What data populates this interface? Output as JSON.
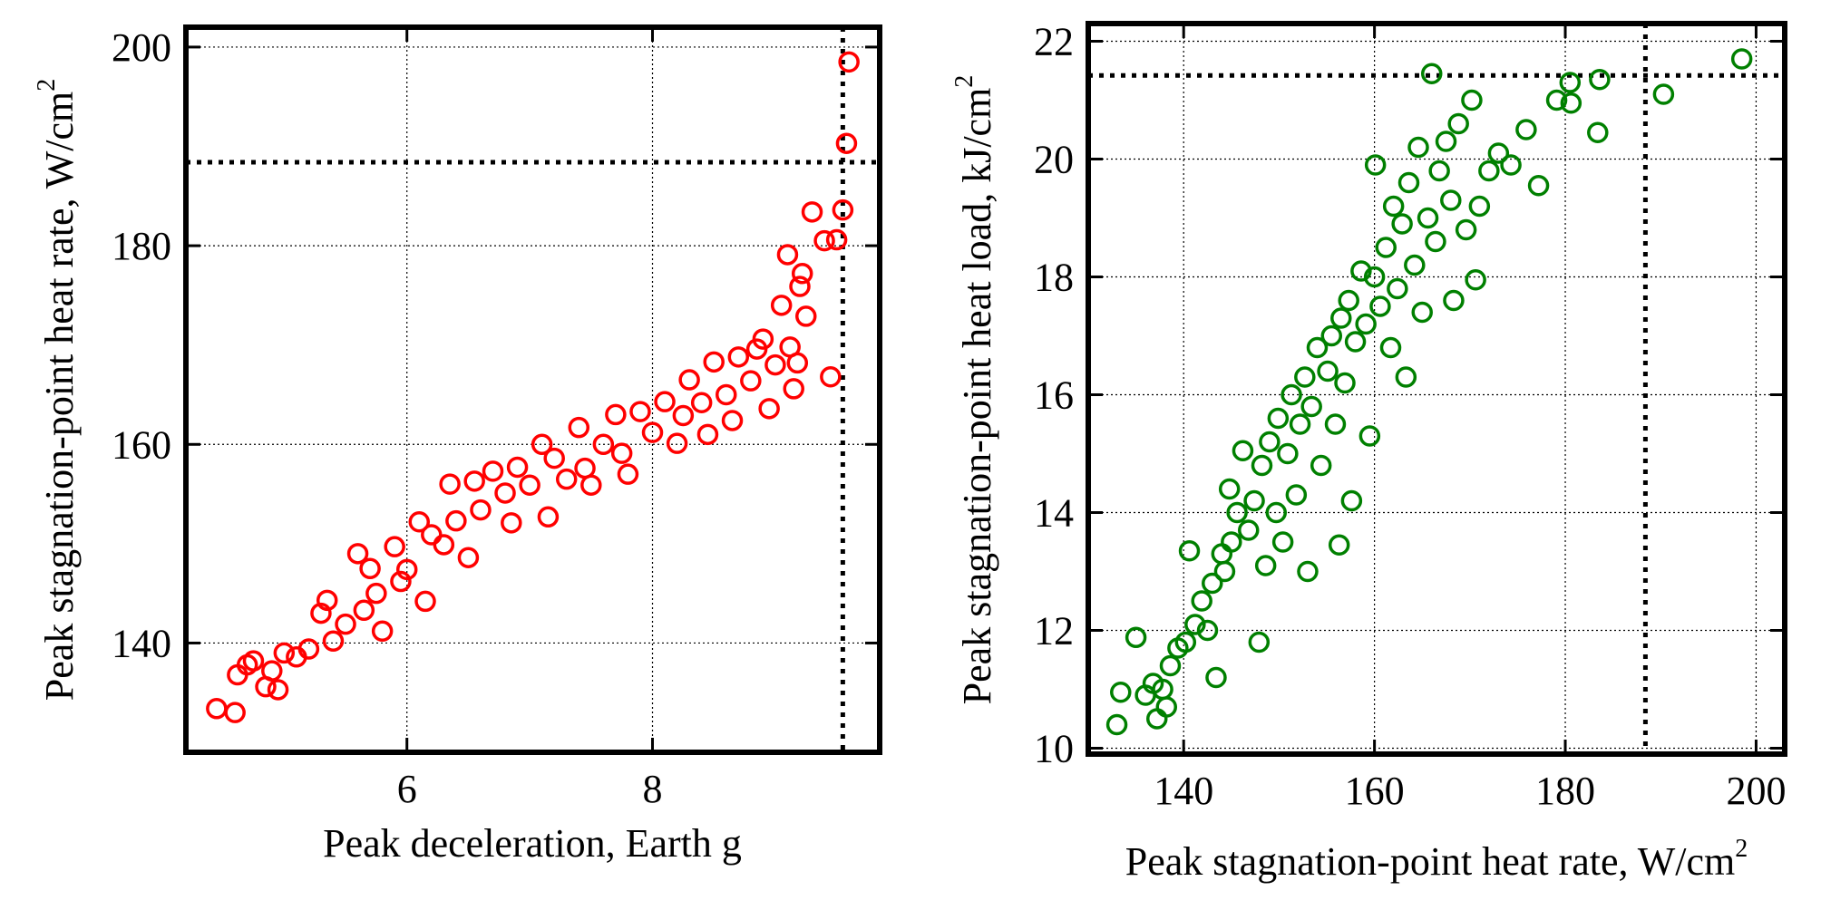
{
  "chart_data": [
    {
      "type": "scatter",
      "xlabel": "Peak deceleration, Earth g",
      "ylabel": "Peak stagnation-point heat rate,  W/cm",
      "ylabel_sup": "2",
      "xlim": [
        4.2,
        9.85
      ],
      "ylim": [
        129,
        202
      ],
      "xticks": [
        6,
        8
      ],
      "yticks": [
        140,
        160,
        180,
        200
      ],
      "grid": true,
      "marker": "open-circle",
      "color": "#ff0000",
      "reference_lines": {
        "x": 9.55,
        "y": 188.4,
        "style": "dotted"
      },
      "points": [
        [
          4.45,
          133.4
        ],
        [
          4.6,
          133.0
        ],
        [
          4.62,
          136.8
        ],
        [
          4.7,
          137.8
        ],
        [
          4.75,
          138.2
        ],
        [
          4.85,
          135.6
        ],
        [
          4.9,
          137.2
        ],
        [
          4.95,
          135.3
        ],
        [
          5.0,
          139.0
        ],
        [
          5.1,
          138.6
        ],
        [
          5.2,
          139.4
        ],
        [
          5.3,
          143.0
        ],
        [
          5.35,
          144.3
        ],
        [
          5.4,
          140.2
        ],
        [
          5.5,
          141.9
        ],
        [
          5.6,
          149.0
        ],
        [
          5.65,
          143.3
        ],
        [
          5.7,
          147.5
        ],
        [
          5.75,
          145.0
        ],
        [
          5.8,
          141.2
        ],
        [
          5.9,
          149.7
        ],
        [
          5.95,
          146.2
        ],
        [
          6.0,
          147.4
        ],
        [
          6.1,
          152.2
        ],
        [
          6.15,
          144.2
        ],
        [
          6.2,
          150.9
        ],
        [
          6.3,
          149.9
        ],
        [
          6.35,
          156.0
        ],
        [
          6.4,
          152.3
        ],
        [
          6.5,
          148.6
        ],
        [
          6.55,
          156.3
        ],
        [
          6.6,
          153.4
        ],
        [
          6.7,
          157.3
        ],
        [
          6.8,
          155.1
        ],
        [
          6.85,
          152.1
        ],
        [
          6.9,
          157.7
        ],
        [
          7.0,
          155.9
        ],
        [
          7.1,
          160.0
        ],
        [
          7.15,
          152.7
        ],
        [
          7.2,
          158.6
        ],
        [
          7.3,
          156.5
        ],
        [
          7.4,
          161.7
        ],
        [
          7.45,
          157.6
        ],
        [
          7.5,
          155.9
        ],
        [
          7.6,
          160.0
        ],
        [
          7.7,
          163.0
        ],
        [
          7.75,
          159.1
        ],
        [
          7.8,
          157.0
        ],
        [
          7.9,
          163.3
        ],
        [
          8.0,
          161.2
        ],
        [
          8.1,
          164.3
        ],
        [
          8.2,
          160.1
        ],
        [
          8.25,
          162.9
        ],
        [
          8.3,
          166.5
        ],
        [
          8.4,
          164.2
        ],
        [
          8.45,
          161.0
        ],
        [
          8.5,
          168.3
        ],
        [
          8.6,
          165.0
        ],
        [
          8.65,
          162.4
        ],
        [
          8.7,
          168.8
        ],
        [
          8.8,
          166.4
        ],
        [
          8.85,
          169.6
        ],
        [
          8.9,
          170.6
        ],
        [
          8.95,
          163.6
        ],
        [
          9.0,
          168.0
        ],
        [
          9.05,
          174.0
        ],
        [
          9.1,
          179.1
        ],
        [
          9.12,
          169.8
        ],
        [
          9.15,
          165.6
        ],
        [
          9.18,
          168.2
        ],
        [
          9.2,
          175.9
        ],
        [
          9.22,
          177.2
        ],
        [
          9.25,
          172.9
        ],
        [
          9.3,
          183.4
        ],
        [
          9.4,
          180.5
        ],
        [
          9.45,
          166.8
        ],
        [
          9.5,
          180.6
        ],
        [
          9.55,
          183.6
        ],
        [
          9.58,
          190.3
        ],
        [
          9.6,
          198.5
        ]
      ]
    },
    {
      "type": "scatter",
      "xlabel": "Peak stagnation-point heat rate, W/cm",
      "xlabel_sup": "2",
      "ylabel": "Peak stagnation-point heat load, kJ/cm",
      "ylabel_sup": "2",
      "xlim": [
        130,
        203
      ],
      "ylim": [
        9.9,
        22.3
      ],
      "xticks": [
        140,
        160,
        180,
        200
      ],
      "yticks": [
        10,
        12,
        14,
        16,
        18,
        20,
        22
      ],
      "grid": true,
      "marker": "open-circle",
      "color": "#008000",
      "reference_lines": {
        "x": 188.4,
        "y": 21.42,
        "style": "dotted"
      },
      "points": [
        [
          133.4,
          10.95
        ],
        [
          133.0,
          10.4
        ],
        [
          135.0,
          11.88
        ],
        [
          136.0,
          10.9
        ],
        [
          136.8,
          11.1
        ],
        [
          137.2,
          10.5
        ],
        [
          137.8,
          11.0
        ],
        [
          138.2,
          10.7
        ],
        [
          138.6,
          11.4
        ],
        [
          139.4,
          11.7
        ],
        [
          140.2,
          11.8
        ],
        [
          140.6,
          13.35
        ],
        [
          141.2,
          12.1
        ],
        [
          141.9,
          12.5
        ],
        [
          142.5,
          12.0
        ],
        [
          143.0,
          12.8
        ],
        [
          143.4,
          11.2
        ],
        [
          144.0,
          13.3
        ],
        [
          144.3,
          13.0
        ],
        [
          144.8,
          14.4
        ],
        [
          145.0,
          13.5
        ],
        [
          145.6,
          14.0
        ],
        [
          146.2,
          15.05
        ],
        [
          146.8,
          13.7
        ],
        [
          147.4,
          14.2
        ],
        [
          147.9,
          11.8
        ],
        [
          148.2,
          14.8
        ],
        [
          148.6,
          13.1
        ],
        [
          149.0,
          15.2
        ],
        [
          149.7,
          14.0
        ],
        [
          149.9,
          15.6
        ],
        [
          150.4,
          13.5
        ],
        [
          150.9,
          15.0
        ],
        [
          151.3,
          16.0
        ],
        [
          151.8,
          14.3
        ],
        [
          152.2,
          15.5
        ],
        [
          152.7,
          16.3
        ],
        [
          153.0,
          13.0
        ],
        [
          153.4,
          15.8
        ],
        [
          154.0,
          16.8
        ],
        [
          154.4,
          14.8
        ],
        [
          155.1,
          16.4
        ],
        [
          155.5,
          17.0
        ],
        [
          155.9,
          15.5
        ],
        [
          156.3,
          13.45
        ],
        [
          156.5,
          17.3
        ],
        [
          156.9,
          16.2
        ],
        [
          157.3,
          17.6
        ],
        [
          157.6,
          14.2
        ],
        [
          158.0,
          16.9
        ],
        [
          158.6,
          18.1
        ],
        [
          159.1,
          17.2
        ],
        [
          159.5,
          15.3
        ],
        [
          160.0,
          18.0
        ],
        [
          160.1,
          19.9
        ],
        [
          160.6,
          17.5
        ],
        [
          161.2,
          18.5
        ],
        [
          161.7,
          16.8
        ],
        [
          162.0,
          19.2
        ],
        [
          162.4,
          17.8
        ],
        [
          162.9,
          18.9
        ],
        [
          163.3,
          16.3
        ],
        [
          163.6,
          19.6
        ],
        [
          164.2,
          18.2
        ],
        [
          164.6,
          20.2
        ],
        [
          165.0,
          17.4
        ],
        [
          165.6,
          19.0
        ],
        [
          166.0,
          21.45
        ],
        [
          166.4,
          18.6
        ],
        [
          166.8,
          19.8
        ],
        [
          167.5,
          20.3
        ],
        [
          168.0,
          19.3
        ],
        [
          168.3,
          17.6
        ],
        [
          168.8,
          20.6
        ],
        [
          169.6,
          18.8
        ],
        [
          170.2,
          21.0
        ],
        [
          170.6,
          17.95
        ],
        [
          171.0,
          19.2
        ],
        [
          172.0,
          19.8
        ],
        [
          173.0,
          20.1
        ],
        [
          174.3,
          19.9
        ],
        [
          175.9,
          20.5
        ],
        [
          177.2,
          19.55
        ],
        [
          179.1,
          21.0
        ],
        [
          180.5,
          21.3
        ],
        [
          180.6,
          20.95
        ],
        [
          183.4,
          20.45
        ],
        [
          183.6,
          21.35
        ],
        [
          190.3,
          21.1
        ],
        [
          198.5,
          21.7
        ]
      ]
    }
  ]
}
